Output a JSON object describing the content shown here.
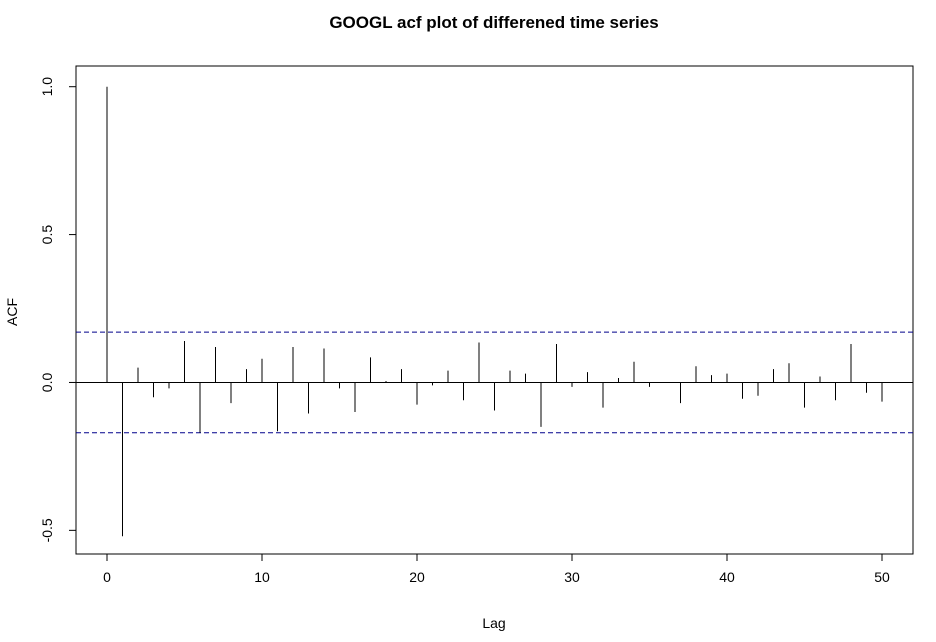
{
  "chart_data": {
    "type": "bar",
    "title": "GOOGL acf plot of differened time series",
    "xlabel": "Lag",
    "ylabel": "ACF",
    "xlim": [
      -2,
      52
    ],
    "ylim": [
      -0.58,
      1.07
    ],
    "x_ticks": [
      0,
      10,
      20,
      30,
      40,
      50
    ],
    "y_ticks": [
      -0.5,
      0.0,
      0.5,
      1.0
    ],
    "x_tick_labels": [
      "0",
      "10",
      "20",
      "30",
      "40",
      "50"
    ],
    "y_tick_labels": [
      "-0.5",
      "0.0",
      "0.5",
      "1.0"
    ],
    "confidence_bound": 0.17,
    "confidence_color": "#00008b",
    "grid": false,
    "lags": [
      0,
      1,
      2,
      3,
      4,
      5,
      6,
      7,
      8,
      9,
      10,
      11,
      12,
      13,
      14,
      15,
      16,
      17,
      18,
      19,
      20,
      21,
      22,
      23,
      24,
      25,
      26,
      27,
      28,
      29,
      30,
      31,
      32,
      33,
      34,
      35,
      36,
      37,
      38,
      39,
      40,
      41,
      42,
      43,
      44,
      45,
      46,
      47,
      48,
      49,
      50
    ],
    "values": [
      1.0,
      -0.52,
      0.05,
      -0.05,
      -0.02,
      0.14,
      -0.17,
      0.12,
      -0.07,
      0.045,
      0.08,
      -0.165,
      0.12,
      -0.105,
      0.115,
      -0.02,
      -0.1,
      0.085,
      0.005,
      0.045,
      -0.075,
      -0.01,
      0.04,
      -0.06,
      0.135,
      -0.095,
      0.04,
      0.03,
      -0.15,
      0.13,
      -0.015,
      0.035,
      -0.085,
      0.015,
      0.07,
      -0.015,
      0.0,
      -0.07,
      0.055,
      0.025,
      0.03,
      -0.055,
      -0.045,
      0.045,
      0.065,
      -0.085,
      0.02,
      -0.06,
      0.13,
      -0.035,
      -0.065
    ]
  }
}
